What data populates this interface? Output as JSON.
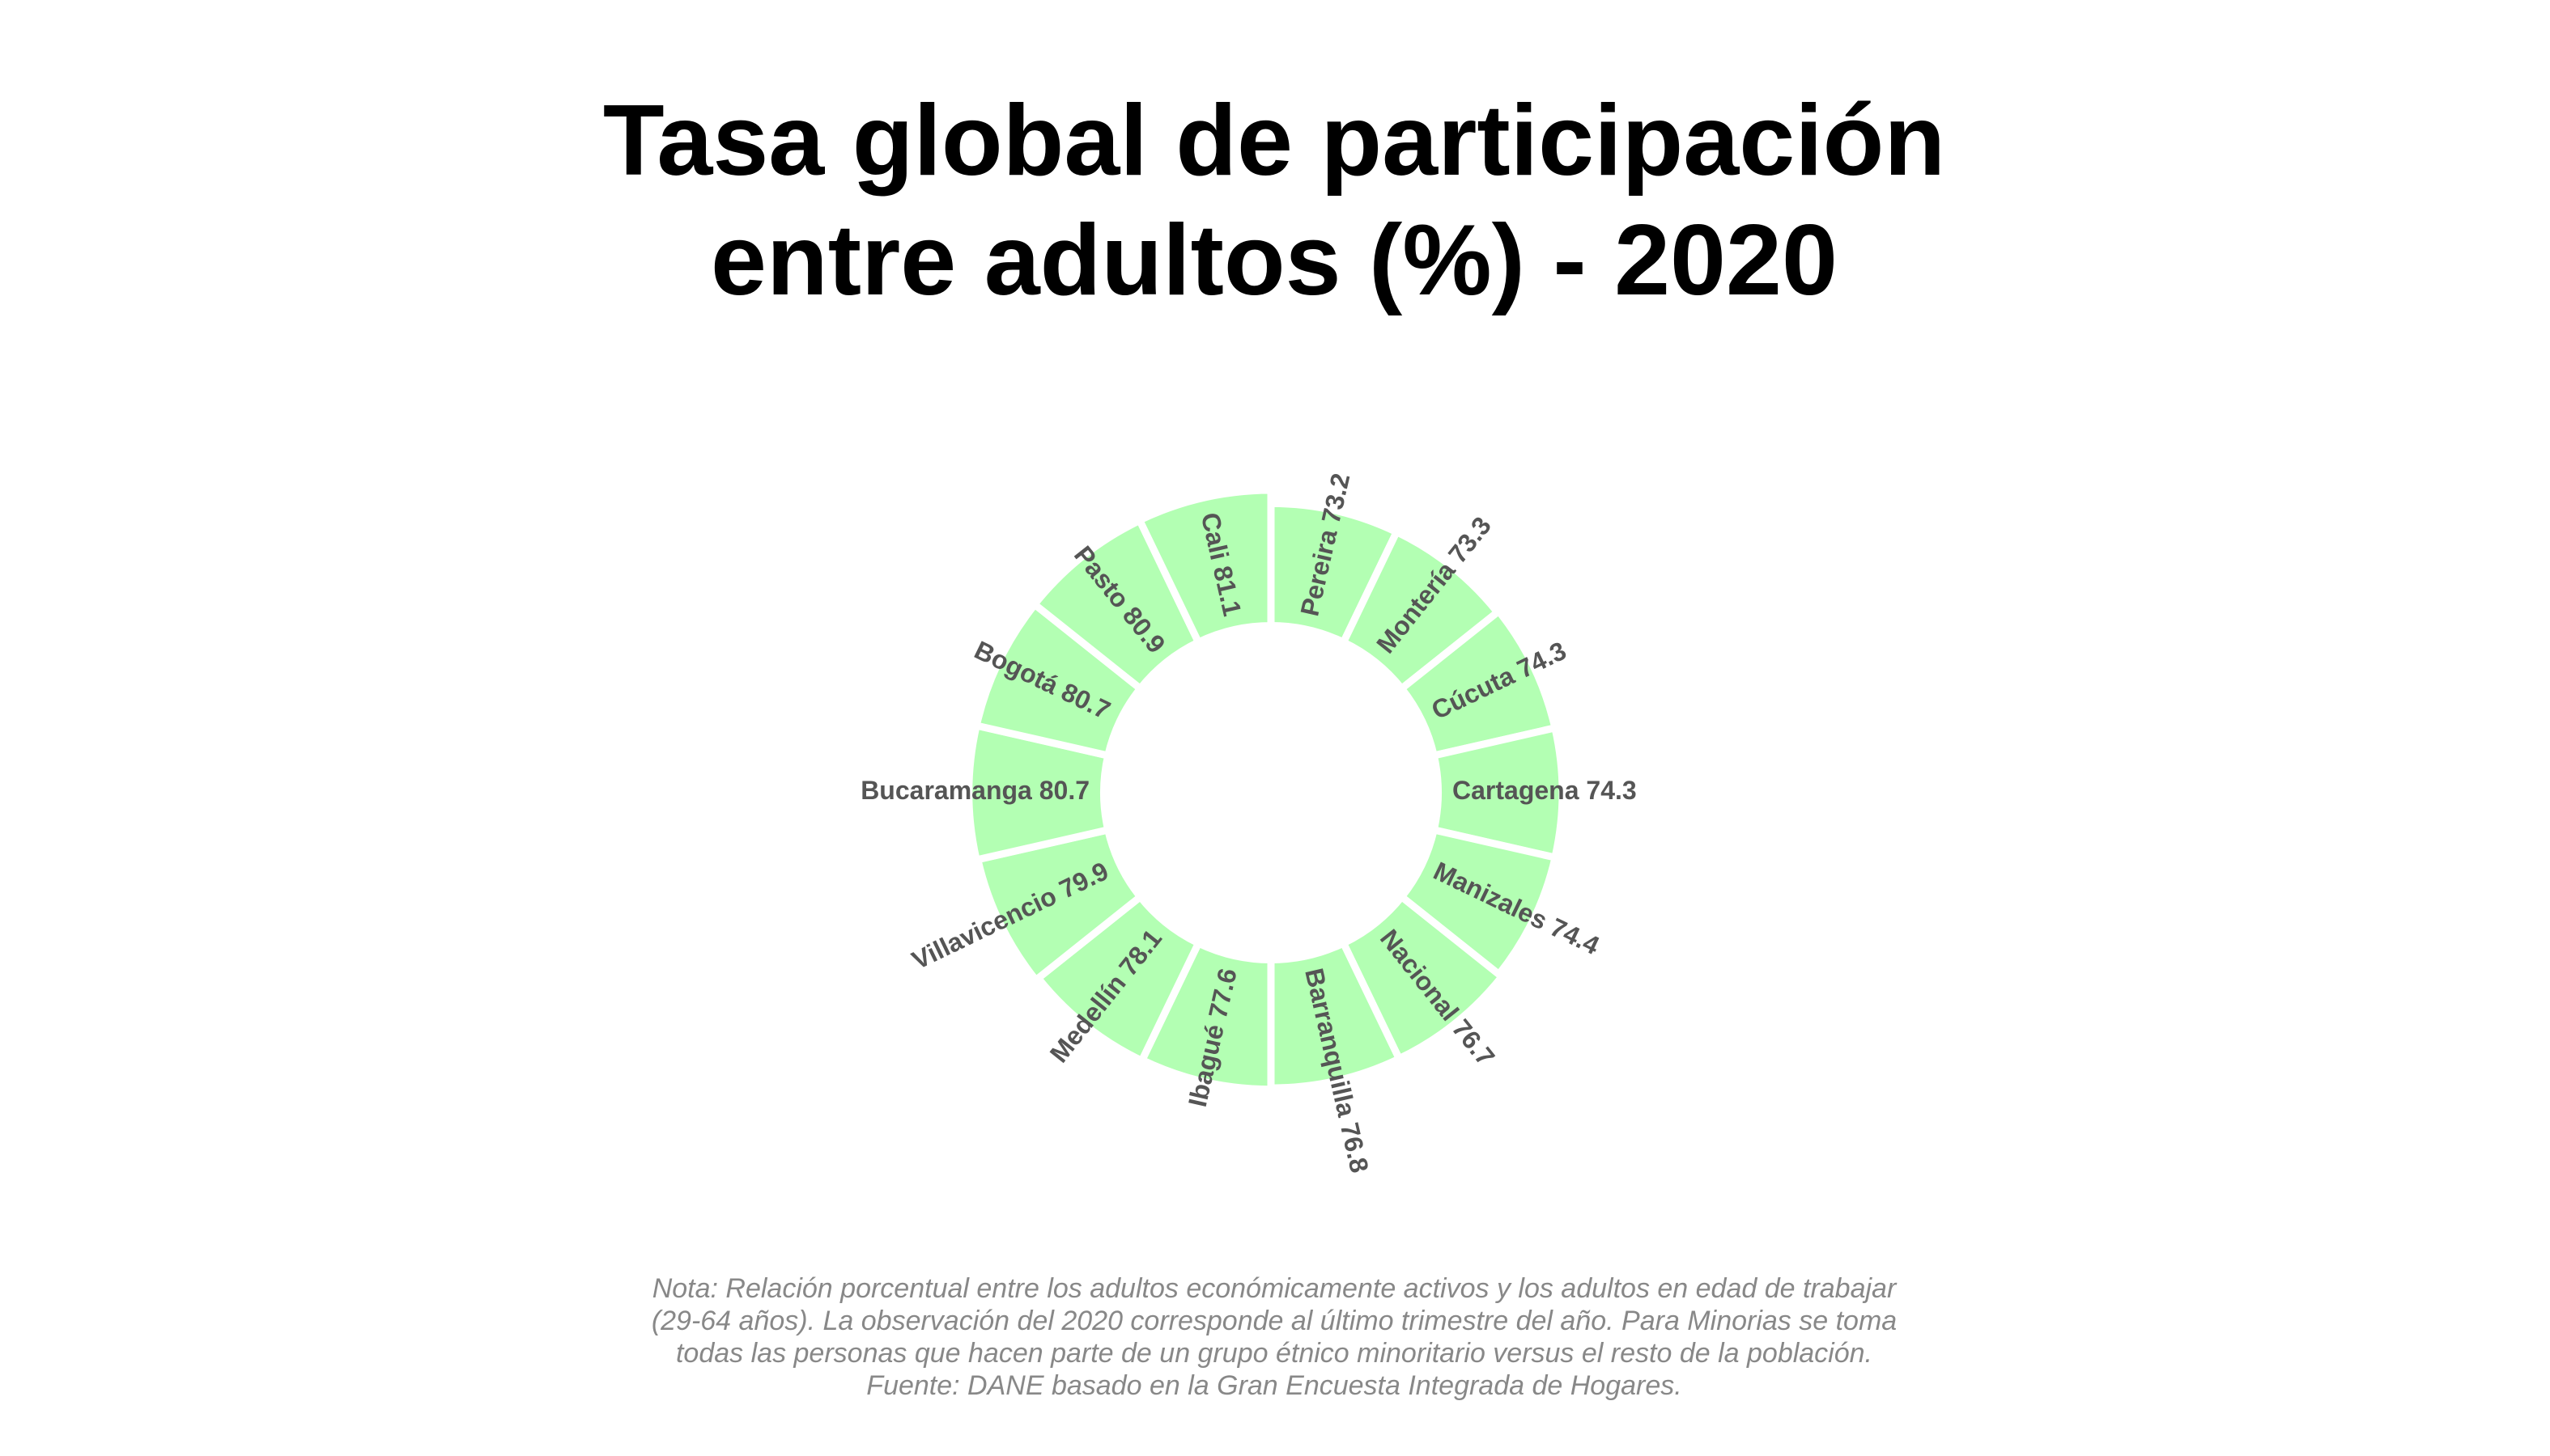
{
  "chart_data": {
    "type": "polar_bar",
    "title": [
      "Tasa global de participación",
      "entre adultos (%) - 2020"
    ],
    "categories": [
      "Pereira",
      "Montería",
      "Cúcuta",
      "Cartagena",
      "Manizales",
      "Nacional",
      "Barranquilla",
      "Ibagué",
      "Medellín",
      "Villavicencio",
      "Bucaramanga",
      "Bogotá",
      "Pasto",
      "Cali"
    ],
    "values": [
      73.2,
      73.3,
      74.3,
      74.3,
      74.4,
      76.7,
      76.8,
      77.6,
      78.1,
      79.9,
      80.7,
      80.7,
      80.9,
      81.1
    ],
    "color": "#b3ffb3",
    "ylim": [
      -100,
      85
    ],
    "note": [
      "Nota: Relación porcentual entre los adultos económicamente activos y los adultos en edad de trabajar",
      "(29-64 años). La observación del 2020 corresponde al último trimestre del año. Para Minorias se toma",
      "todas las personas que hacen parte de un grupo étnico minoritario versus el resto de la población.",
      "Fuente: DANE basado en la Gran Encuesta Integrada de Hogares."
    ]
  }
}
